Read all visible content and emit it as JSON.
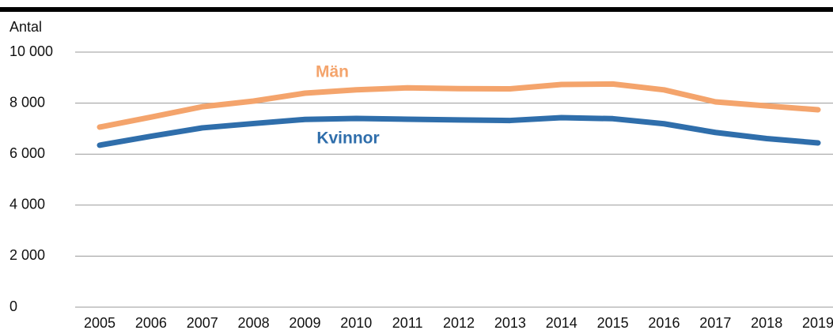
{
  "chart_data": {
    "type": "line",
    "y_axis_label": "Antal",
    "categories": [
      "2005",
      "2006",
      "2007",
      "2008",
      "2009",
      "2010",
      "2011",
      "2012",
      "2013",
      "2014",
      "2015",
      "2016",
      "2017",
      "2018",
      "2019"
    ],
    "series": [
      {
        "name": "Män",
        "color": "#f4a46c",
        "values": [
          7060,
          7450,
          7860,
          8080,
          8390,
          8520,
          8600,
          8570,
          8560,
          8730,
          8750,
          8520,
          8050,
          7890,
          7740
        ]
      },
      {
        "name": "Kvinnor",
        "color": "#2f6eab",
        "values": [
          6350,
          6700,
          7030,
          7200,
          7360,
          7400,
          7370,
          7340,
          7320,
          7430,
          7390,
          7190,
          6850,
          6610,
          6440
        ]
      }
    ],
    "ylim": [
      0,
      10000
    ],
    "yticks": [
      0,
      {
        "value": 2000,
        "label": "2 000"
      },
      {
        "value": 4000,
        "label": "4 000"
      },
      {
        "value": 6000,
        "label": "6 000"
      },
      {
        "value": 8000,
        "label": "8 000"
      },
      {
        "value": 10000,
        "label": "10 000"
      }
    ],
    "grid": true,
    "legend": "inline"
  }
}
